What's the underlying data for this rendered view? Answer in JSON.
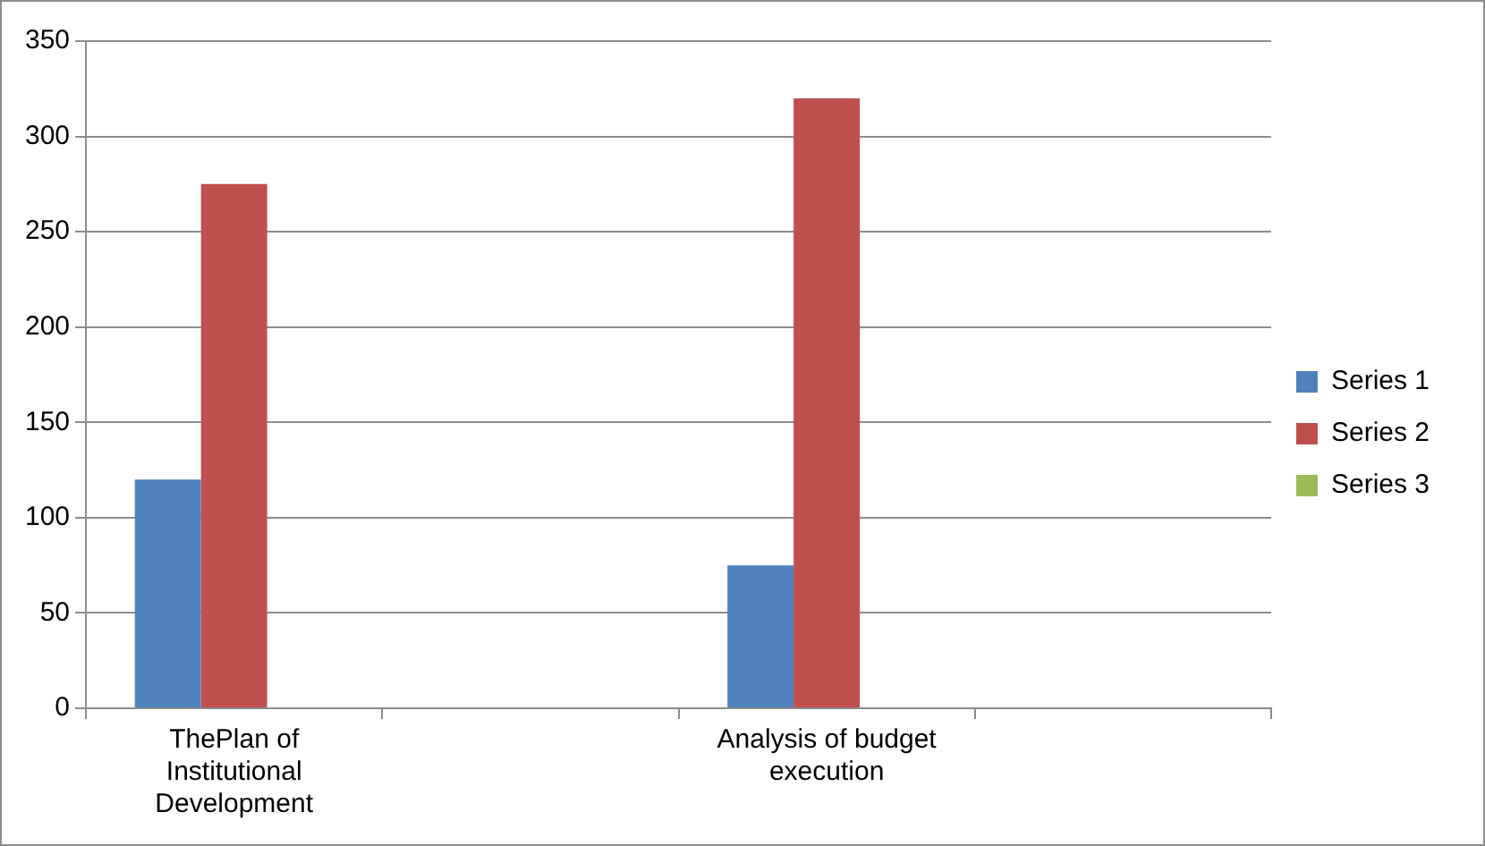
{
  "chart_data": {
    "type": "bar",
    "categories": [
      "ThePlan of Institutional Development",
      null,
      "Analysis of budget execution",
      null
    ],
    "series": [
      {
        "name": "Series 1",
        "color": "#4f81bd",
        "values": [
          120,
          null,
          75,
          null
        ]
      },
      {
        "name": "Series 2",
        "color": "#c0504d",
        "values": [
          275,
          null,
          320,
          null
        ]
      },
      {
        "name": "Series 3",
        "color": "#9bbb59",
        "values": [
          null,
          null,
          null,
          null
        ]
      }
    ],
    "ylim": [
      0,
      350
    ],
    "yticks": [
      0,
      50,
      100,
      150,
      200,
      250,
      300,
      350
    ],
    "grid": "y",
    "legend": "right"
  }
}
